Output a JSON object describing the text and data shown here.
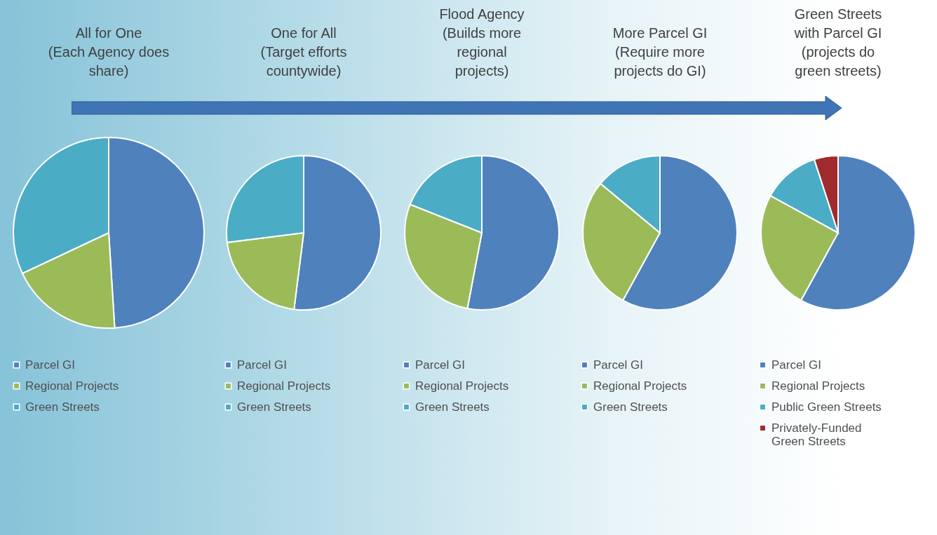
{
  "chart_data": [
    {
      "type": "pie",
      "title": "All for One\n(Each Agency does\nshare)",
      "categories": [
        "Parcel GI",
        "Regional Projects",
        "Green Streets"
      ],
      "values": [
        49,
        19,
        32
      ],
      "colors": [
        "#4f81bd",
        "#9bbb59",
        "#4bacc6"
      ],
      "legend": "bottom"
    },
    {
      "type": "pie",
      "title": "One for All\n(Target efforts\ncountywide)",
      "categories": [
        "Parcel GI",
        "Regional Projects",
        "Green Streets"
      ],
      "values": [
        52,
        21,
        27
      ],
      "colors": [
        "#4f81bd",
        "#9bbb59",
        "#4bacc6"
      ],
      "legend": "bottom"
    },
    {
      "type": "pie",
      "title": "Flood Agency\n(Builds more\nregional\nprojects)",
      "categories": [
        "Parcel GI",
        "Regional Projects",
        "Green Streets"
      ],
      "values": [
        53,
        28,
        19
      ],
      "colors": [
        "#4f81bd",
        "#9bbb59",
        "#4bacc6"
      ],
      "legend": "bottom"
    },
    {
      "type": "pie",
      "title": "More Parcel GI\n(Require more\nprojects do GI)",
      "categories": [
        "Parcel GI",
        "Regional Projects",
        "Green Streets"
      ],
      "values": [
        58,
        28,
        14
      ],
      "colors": [
        "#4f81bd",
        "#9bbb59",
        "#4bacc6"
      ],
      "legend": "bottom"
    },
    {
      "type": "pie",
      "title": "Green Streets\nwith Parcel GI\n(projects do\ngreen streets)",
      "categories": [
        "Parcel GI",
        "Regional Projects",
        "Public Green Streets",
        "Privately-Funded\nGreen Streets"
      ],
      "values": [
        58,
        25,
        12,
        5
      ],
      "colors": [
        "#4f81bd",
        "#9bbb59",
        "#4bacc6",
        "#a02b2e"
      ],
      "legend": "bottom"
    }
  ]
}
